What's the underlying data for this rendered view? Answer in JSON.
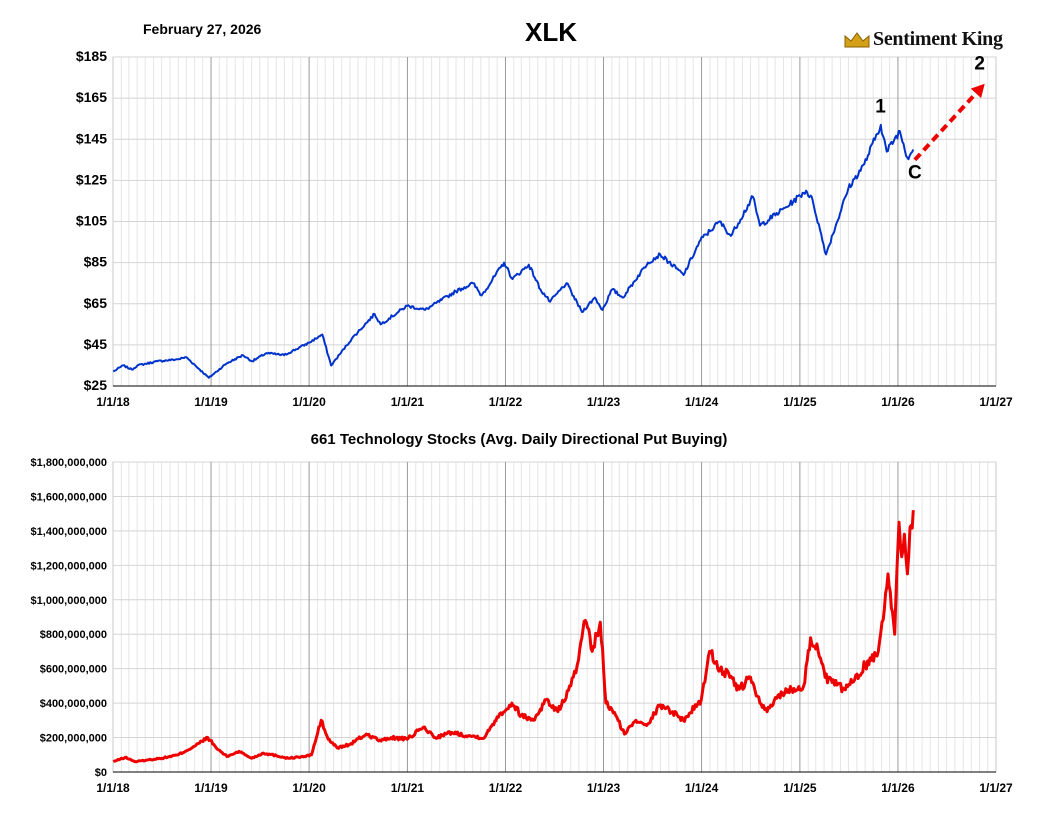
{
  "header": {
    "date": "February 27, 2026",
    "title": "XLK",
    "logo_text": "Sentiment King"
  },
  "colors": {
    "price_line": "#0033cc",
    "put_line": "#ee0000",
    "annotation_arrow": "#ee0000"
  },
  "chart_data": [
    {
      "type": "line",
      "title": "XLK",
      "x_tick_labels": [
        "1/1/18",
        "1/1/19",
        "1/1/20",
        "1/1/21",
        "1/1/22",
        "1/1/23",
        "1/1/24",
        "1/1/25",
        "1/1/26",
        "1/1/27"
      ],
      "xlim": [
        "2018-01-01",
        "2027-01-01"
      ],
      "ylim": [
        25,
        185
      ],
      "y_tick_labels": [
        "$25",
        "$45",
        "$65",
        "$85",
        "$105",
        "$125",
        "$145",
        "$165",
        "$185"
      ],
      "y_ticks": [
        25,
        45,
        65,
        85,
        105,
        125,
        145,
        165,
        185
      ],
      "grid": true,
      "annotations": [
        {
          "label": "1",
          "x": "2025-10-28",
          "y": 158
        },
        {
          "label": "C",
          "x": "2026-03-05",
          "y": 126
        },
        {
          "label": "2",
          "x": "2026-11-01",
          "y": 179
        }
      ],
      "arrow": {
        "from": {
          "x": "2026-03-05",
          "y": 135
        },
        "to": {
          "x": "2026-11-20",
          "y": 172
        }
      },
      "series": [
        {
          "x": [
            "2018-01-02",
            "2018-02-08",
            "2018-03-12",
            "2018-04-02",
            "2018-06-15",
            "2018-08-30",
            "2018-10-01",
            "2018-11-20",
            "2018-12-24",
            "2019-02-28",
            "2019-04-30",
            "2019-06-03",
            "2019-07-26",
            "2019-09-30",
            "2019-12-31",
            "2020-02-19",
            "2020-03-23",
            "2020-06-08",
            "2020-09-01",
            "2020-09-23",
            "2020-12-31",
            "2021-03-08",
            "2021-06-30",
            "2021-09-02",
            "2021-10-04",
            "2021-12-27",
            "2022-01-27",
            "2022-03-29",
            "2022-05-11",
            "2022-06-16",
            "2022-08-16",
            "2022-10-13",
            "2022-11-30",
            "2022-12-28",
            "2023-02-02",
            "2023-03-13",
            "2023-06-15",
            "2023-07-31",
            "2023-10-26",
            "2023-12-28",
            "2024-03-08",
            "2024-04-19",
            "2024-07-10",
            "2024-08-05",
            "2024-11-11",
            "2025-01-24",
            "2025-02-18",
            "2025-04-08",
            "2025-06-30",
            "2025-08-29",
            "2025-10-29",
            "2025-11-20",
            "2026-01-08",
            "2026-02-05",
            "2026-02-27"
          ],
          "values": [
            32,
            35,
            33,
            35,
            37,
            38,
            39,
            33,
            29,
            36,
            40,
            37,
            41,
            40,
            46,
            50,
            35,
            48,
            60,
            55,
            64,
            62,
            71,
            75,
            69,
            85,
            77,
            84,
            72,
            66,
            75,
            61,
            68,
            62,
            72,
            68,
            85,
            89,
            79,
            96,
            105,
            98,
            117,
            103,
            112,
            120,
            115,
            89,
            121,
            133,
            152,
            139,
            149,
            136,
            140
          ]
        }
      ]
    },
    {
      "type": "line",
      "title": "661 Technology Stocks (Avg. Daily Directional Put Buying)",
      "x_tick_labels": [
        "1/1/18",
        "1/1/19",
        "1/1/20",
        "1/1/21",
        "1/1/22",
        "1/1/23",
        "1/1/24",
        "1/1/25",
        "1/1/26",
        "1/1/27"
      ],
      "xlim": [
        "2018-01-01",
        "2027-01-01"
      ],
      "ylim": [
        0,
        1800000000
      ],
      "y_tick_labels": [
        "$0",
        "$200,000,000",
        "$400,000,000",
        "$600,000,000",
        "$800,000,000",
        "$1,000,000,000",
        "$1,200,000,000",
        "$1,400,000,000",
        "$1,600,000,000",
        "$1,800,000,000"
      ],
      "y_ticks": [
        0,
        200000000,
        400000000,
        600000000,
        800000000,
        1000000000,
        1200000000,
        1400000000,
        1600000000,
        1800000000
      ],
      "grid": true,
      "series": [
        {
          "x": [
            "2018-01-02",
            "2018-02-15",
            "2018-03-25",
            "2018-05-10",
            "2018-07-01",
            "2018-09-01",
            "2018-11-01",
            "2018-12-20",
            "2019-01-20",
            "2019-03-01",
            "2019-04-15",
            "2019-06-01",
            "2019-07-15",
            "2019-09-01",
            "2019-10-15",
            "2019-12-15",
            "2020-01-10",
            "2020-02-15",
            "2020-03-12",
            "2020-04-15",
            "2020-06-01",
            "2020-08-01",
            "2020-09-25",
            "2020-11-01",
            "2020-12-31",
            "2021-03-01",
            "2021-04-15",
            "2021-06-15",
            "2021-08-15",
            "2021-10-15",
            "2021-12-01",
            "2022-01-25",
            "2022-03-01",
            "2022-04-15",
            "2022-06-01",
            "2022-07-15",
            "2022-09-01",
            "2022-09-30",
            "2022-10-25",
            "2022-11-20",
            "2022-12-20",
            "2023-01-10",
            "2023-02-15",
            "2023-03-20",
            "2023-05-01",
            "2023-06-15",
            "2023-08-01",
            "2023-09-15",
            "2023-10-25",
            "2023-12-31",
            "2024-01-31",
            "2024-03-10",
            "2024-04-15",
            "2024-05-20",
            "2024-07-01",
            "2024-08-05",
            "2024-09-01",
            "2024-10-15",
            "2024-12-01",
            "2025-01-15",
            "2025-02-10",
            "2025-03-10",
            "2025-04-05",
            "2025-05-01",
            "2025-06-15",
            "2025-07-15",
            "2025-09-01",
            "2025-10-20",
            "2025-11-25",
            "2025-12-20",
            "2026-01-05",
            "2026-01-15",
            "2026-01-25",
            "2026-02-05",
            "2026-02-15",
            "2026-02-27"
          ],
          "values": [
            60000000,
            85000000,
            60000000,
            70000000,
            80000000,
            100000000,
            150000000,
            200000000,
            140000000,
            90000000,
            120000000,
            80000000,
            110000000,
            95000000,
            80000000,
            90000000,
            100000000,
            300000000,
            190000000,
            140000000,
            160000000,
            220000000,
            180000000,
            200000000,
            190000000,
            260000000,
            200000000,
            230000000,
            210000000,
            200000000,
            320000000,
            400000000,
            330000000,
            300000000,
            420000000,
            350000000,
            500000000,
            650000000,
            880000000,
            700000000,
            870000000,
            400000000,
            330000000,
            220000000,
            300000000,
            280000000,
            390000000,
            350000000,
            300000000,
            420000000,
            700000000,
            600000000,
            550000000,
            480000000,
            550000000,
            400000000,
            350000000,
            450000000,
            480000000,
            500000000,
            780000000,
            700000000,
            550000000,
            520000000,
            480000000,
            520000000,
            620000000,
            700000000,
            1150000000,
            800000000,
            1450000000,
            1250000000,
            1380000000,
            1150000000,
            1420000000,
            1520000000
          ]
        }
      ]
    }
  ]
}
